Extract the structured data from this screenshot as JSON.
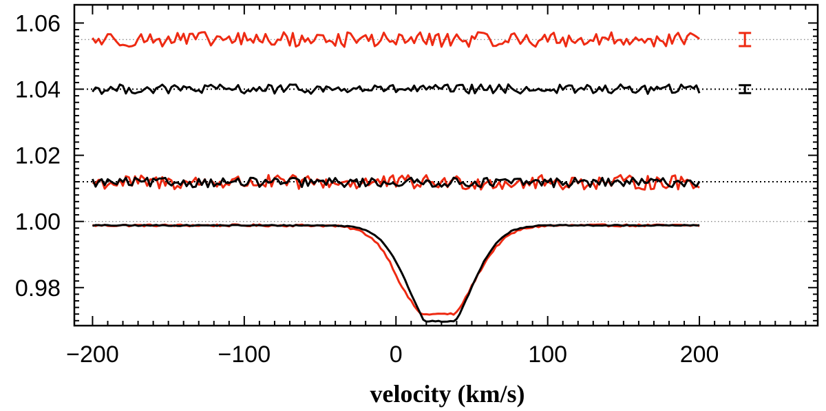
{
  "chart_data": {
    "type": "line",
    "title": "",
    "xlabel": "velocity (km/s)",
    "ylabel": "",
    "xlim": [
      -212,
      278
    ],
    "ylim": [
      0.9685,
      1.0655
    ],
    "x_ticks": [
      -200,
      -100,
      0,
      100,
      200
    ],
    "x_tick_labels": [
      "−200",
      "−100",
      "0",
      "100",
      "200"
    ],
    "y_ticks": [
      0.98,
      1.0,
      1.02,
      1.04,
      1.06
    ],
    "y_tick_labels": [
      "0.98",
      "1.00",
      "1.02",
      "1.04",
      "1.06"
    ],
    "reference_lines": [
      {
        "y": 1.055,
        "color": "#888888",
        "style": "dotted"
      },
      {
        "y": 1.04,
        "color": "#000000",
        "style": "dotted"
      },
      {
        "y": 1.012,
        "color": "#000000",
        "style": "dotted"
      },
      {
        "y": 1.0,
        "color": "#888888",
        "style": "dotted"
      }
    ],
    "x_range": [
      -200,
      200
    ],
    "series": [
      {
        "name": "red-profile",
        "color": "#ee2a12",
        "baseline": 0.9988,
        "noise": 0.0002,
        "dip": {
          "center": 28,
          "depth": 0.0268,
          "sigma": 20,
          "shoulder": {
            "center": 4,
            "depth": 0.002,
            "sigma": 6
          }
        }
      },
      {
        "name": "black-profile",
        "color": "#000000",
        "baseline": 0.9988,
        "noise": 0.0001,
        "dip": {
          "center": 29,
          "depth": 0.029,
          "sigma": 18
        }
      },
      {
        "name": "red-residual-low",
        "color": "#ee2a12",
        "baseline": 1.0118,
        "noise": 0.0014
      },
      {
        "name": "black-residual-low",
        "color": "#000000",
        "baseline": 1.0118,
        "noise": 0.0009
      },
      {
        "name": "black-residual-high",
        "color": "#000000",
        "baseline": 1.04,
        "noise": 0.0009
      },
      {
        "name": "red-residual-high",
        "color": "#ee2a12",
        "baseline": 1.055,
        "noise": 0.0014
      }
    ],
    "error_bars": [
      {
        "name": "red-error-bar",
        "x": 230,
        "y": 1.055,
        "err": 0.002,
        "color": "#ee2a12"
      },
      {
        "name": "black-error-bar",
        "x": 230,
        "y": 1.04,
        "err": 0.0012,
        "color": "#000000"
      }
    ]
  }
}
